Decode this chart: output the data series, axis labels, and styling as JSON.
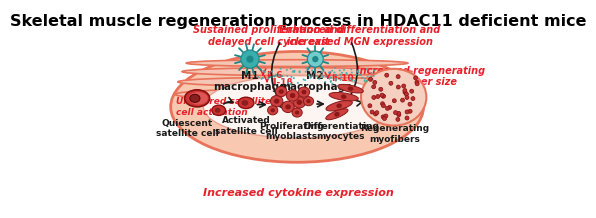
{
  "title": "Skeletal muscle regeneration process in HDAC11 deficient mice",
  "title_fontsize": 11.5,
  "title_color": "#000000",
  "bg_color": "#ffffff",
  "muscle_outer_color": "#e8735a",
  "muscle_light": "#f5c5b5",
  "muscle_inner_fill": "#fde8e0",
  "red_text_color": "#e8202a",
  "black_text_color": "#1a1a1a",
  "cell_dark": "#b83030",
  "macrophage_teal": "#3aadad",
  "macrophage_dark_teal": "#1e8888",
  "labels": {
    "top_left_red": "Sustained proliferation and\ndelayed cell cycle exit",
    "top_right_red": "Enhanced differentiation and\nincreased MGN expression",
    "left_red": "Unaltered satellite\ncell activation",
    "right_red": "Increased regenerating\nmyofiber size",
    "bottom_red": "Increased cytokine expression",
    "quiescent": "Quiescent\nsatellite cell",
    "activated": "Activated\nsatellite cell",
    "proliferating": "Proliferating\nmyoblasts",
    "differentiating": "Differentiating\nmyocytes",
    "regenerating": "Regenerating\nmyofibers",
    "m1": "M1\nmacrophage",
    "m2": "M2\nmacrophage"
  }
}
